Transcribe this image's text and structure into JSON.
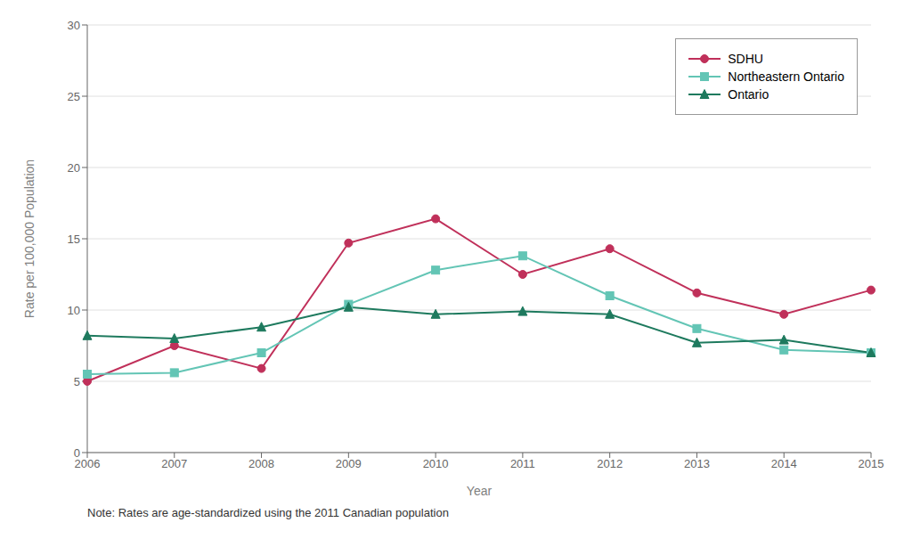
{
  "chart_data": {
    "type": "line",
    "categories": [
      "2006",
      "2007",
      "2008",
      "2009",
      "2010",
      "2011",
      "2012",
      "2013",
      "2014",
      "2015"
    ],
    "series": [
      {
        "name": "SDHU",
        "color": "#c0305a",
        "marker": "circle",
        "values": [
          5.0,
          7.5,
          5.9,
          14.7,
          16.4,
          12.5,
          14.3,
          11.2,
          9.7,
          11.4
        ]
      },
      {
        "name": "Northeastern Ontario",
        "color": "#63c5b5",
        "marker": "square",
        "values": [
          5.5,
          5.6,
          7.0,
          10.4,
          12.8,
          13.8,
          11.0,
          8.7,
          7.2,
          7.0
        ]
      },
      {
        "name": "Ontario",
        "color": "#1e7a5e",
        "marker": "triangle",
        "values": [
          8.2,
          8.0,
          8.8,
          10.2,
          9.7,
          9.9,
          9.7,
          7.7,
          7.9,
          7.0
        ]
      }
    ],
    "xlabel": "Year",
    "ylabel": "Rate per 100,000 Population",
    "ylim": [
      0,
      30
    ],
    "yticks": [
      0,
      5,
      10,
      15,
      20,
      25,
      30
    ],
    "grid": "y",
    "legend": "upper right",
    "note": "Note: Rates are age-standardized using the 2011 Canadian population"
  }
}
